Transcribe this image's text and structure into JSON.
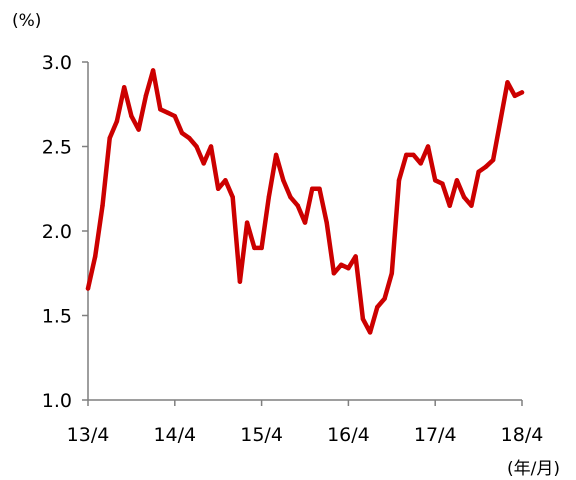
{
  "chart_data": {
    "type": "line",
    "title": "",
    "xlabel": "",
    "ylabel": "",
    "y_unit_label": "(%)",
    "x_unit_label": "(年/月)",
    "ylim": [
      1.0,
      3.0
    ],
    "y_ticks": [
      {
        "value": 1.0,
        "label": "1.0"
      },
      {
        "value": 1.5,
        "label": "1.5"
      },
      {
        "value": 2.0,
        "label": "2.0"
      },
      {
        "value": 2.5,
        "label": "2.5"
      },
      {
        "value": 3.0,
        "label": "3.0"
      }
    ],
    "xlim": [
      "2013-04",
      "2018-04"
    ],
    "x_ticks": [
      {
        "value": "2013-04",
        "label": "13/4"
      },
      {
        "value": "2014-04",
        "label": "14/4"
      },
      {
        "value": "2015-04",
        "label": "15/4"
      },
      {
        "value": "2016-04",
        "label": "16/4"
      },
      {
        "value": "2017-04",
        "label": "17/4"
      },
      {
        "value": "2018-04",
        "label": "18/4"
      }
    ],
    "grid": false,
    "legend": "none",
    "series": [
      {
        "color": "#cc0000",
        "points": [
          [
            "2013-04",
            1.66
          ],
          [
            "2013-05",
            1.85
          ],
          [
            "2013-06",
            2.15
          ],
          [
            "2013-07",
            2.55
          ],
          [
            "2013-08",
            2.65
          ],
          [
            "2013-09",
            2.85
          ],
          [
            "2013-10",
            2.68
          ],
          [
            "2013-11",
            2.6
          ],
          [
            "2013-12",
            2.8
          ],
          [
            "2014-01",
            2.95
          ],
          [
            "2014-02",
            2.72
          ],
          [
            "2014-03",
            2.7
          ],
          [
            "2014-04",
            2.68
          ],
          [
            "2014-05",
            2.58
          ],
          [
            "2014-06",
            2.55
          ],
          [
            "2014-07",
            2.5
          ],
          [
            "2014-08",
            2.4
          ],
          [
            "2014-09",
            2.5
          ],
          [
            "2014-10",
            2.25
          ],
          [
            "2014-11",
            2.3
          ],
          [
            "2014-12",
            2.2
          ],
          [
            "2015-01",
            1.7
          ],
          [
            "2015-02",
            2.05
          ],
          [
            "2015-03",
            1.9
          ],
          [
            "2015-04",
            1.9
          ],
          [
            "2015-05",
            2.2
          ],
          [
            "2015-06",
            2.45
          ],
          [
            "2015-07",
            2.3
          ],
          [
            "2015-08",
            2.2
          ],
          [
            "2015-09",
            2.15
          ],
          [
            "2015-10",
            2.05
          ],
          [
            "2015-11",
            2.25
          ],
          [
            "2015-12",
            2.25
          ],
          [
            "2016-01",
            2.05
          ],
          [
            "2016-02",
            1.75
          ],
          [
            "2016-03",
            1.8
          ],
          [
            "2016-04",
            1.78
          ],
          [
            "2016-05",
            1.85
          ],
          [
            "2016-06",
            1.48
          ],
          [
            "2016-07",
            1.4
          ],
          [
            "2016-08",
            1.55
          ],
          [
            "2016-09",
            1.6
          ],
          [
            "2016-10",
            1.75
          ],
          [
            "2016-11",
            2.3
          ],
          [
            "2016-12",
            2.45
          ],
          [
            "2017-01",
            2.45
          ],
          [
            "2017-02",
            2.4
          ],
          [
            "2017-03",
            2.5
          ],
          [
            "2017-04",
            2.3
          ],
          [
            "2017-05",
            2.28
          ],
          [
            "2017-06",
            2.15
          ],
          [
            "2017-07",
            2.3
          ],
          [
            "2017-08",
            2.2
          ],
          [
            "2017-09",
            2.15
          ],
          [
            "2017-10",
            2.35
          ],
          [
            "2017-11",
            2.38
          ],
          [
            "2017-12",
            2.42
          ],
          [
            "2018-01",
            2.65
          ],
          [
            "2018-02",
            2.88
          ],
          [
            "2018-03",
            2.8
          ],
          [
            "2018-04",
            2.82
          ]
        ]
      }
    ]
  }
}
